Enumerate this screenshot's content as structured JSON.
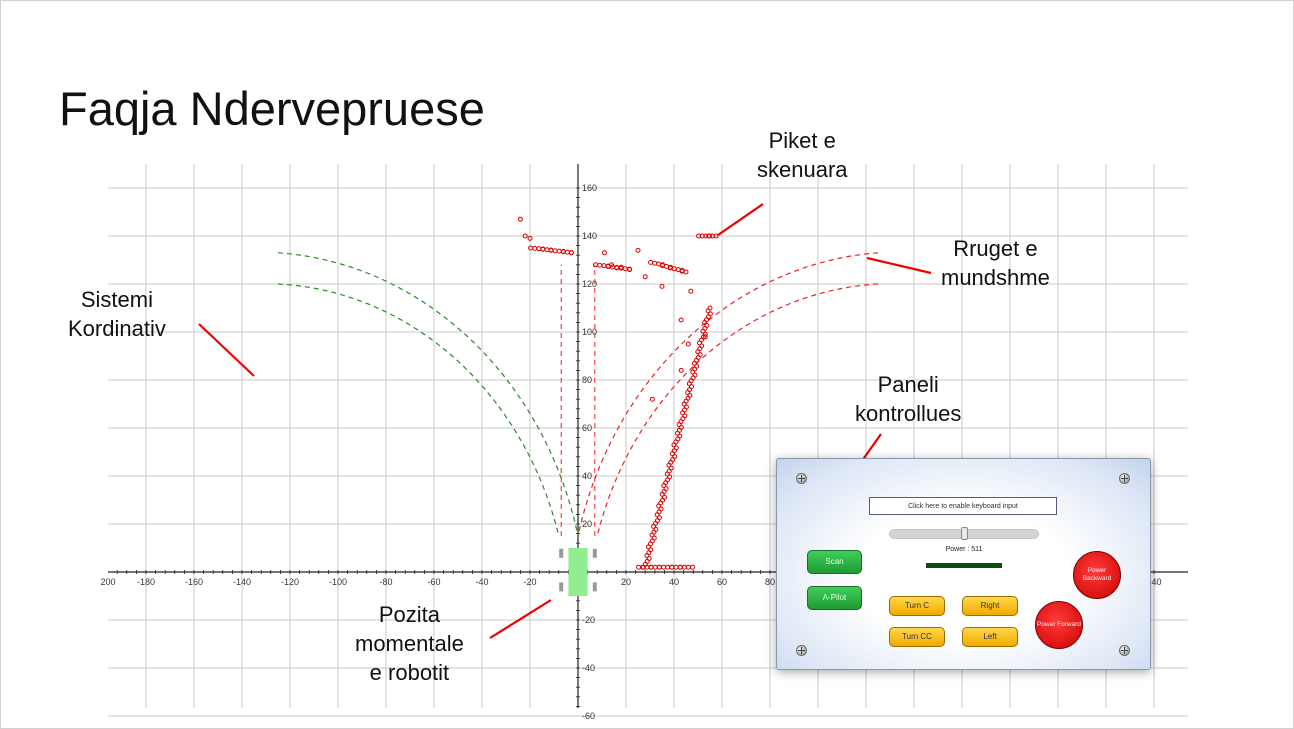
{
  "slide": {
    "title": "Faqja Ndervepruese",
    "annotations": {
      "coordinate_system": [
        "Sistemi",
        "Kordinativ"
      ],
      "scanned_points": [
        "Piket e",
        "skenuara"
      ],
      "possible_paths": [
        "Rruget e",
        "mundshme"
      ],
      "control_panel": [
        "Paneli",
        "kontrollues"
      ],
      "robot_position": [
        "Pozita",
        "momentale",
        "e robotit"
      ]
    }
  },
  "colors": {
    "grid": "#c8c8c8",
    "axis": "#222222",
    "scan_points": "#dd0000",
    "path_green": "#2a8a2a",
    "path_red": "#ee2222",
    "robot_body": "#90ee90",
    "pointer_line": "#ee0000"
  },
  "chart_data": {
    "type": "scatter",
    "xlim": [
      -200,
      240
    ],
    "ylim": [
      -60,
      160
    ],
    "x_ticks": [
      -200,
      -180,
      -160,
      -140,
      -120,
      -100,
      -80,
      -60,
      -40,
      -20,
      20,
      40,
      60,
      80,
      100,
      120,
      140,
      160,
      180,
      200,
      220,
      240
    ],
    "y_ticks": [
      160,
      140,
      120,
      100,
      80,
      60,
      40,
      20,
      -20,
      -40,
      -60
    ],
    "x_tick_labels_visible": [
      "200",
      "-180",
      "-160",
      "-140",
      "-120",
      "-100",
      "-80",
      "-60",
      "-40",
      "-20",
      "20",
      "40",
      "60",
      "80",
      "240"
    ],
    "y_tick_labels_visible": [
      "160",
      "140",
      "120",
      "100",
      "80",
      "60",
      "40",
      "20",
      "-20",
      "-40",
      "-60"
    ],
    "grid": true,
    "scan_segments": [
      {
        "x": [
          -19,
          -2
        ],
        "y": [
          135,
          133
        ]
      },
      {
        "x": [
          8,
          22
        ],
        "y": [
          128,
          126
        ]
      },
      {
        "x": [
          31,
          45
        ],
        "y": [
          129,
          125
        ]
      },
      {
        "x": [
          51,
          57
        ],
        "y": [
          140,
          140
        ]
      },
      {
        "x": [
          28,
          55
        ],
        "y": [
          2,
          110
        ]
      },
      {
        "x": [
          26,
          47
        ],
        "y": [
          2,
          2
        ]
      }
    ],
    "scan_points": [
      {
        "x": -24,
        "y": 147
      },
      {
        "x": -22,
        "y": 140
      },
      {
        "x": -20,
        "y": 139
      },
      {
        "x": 11,
        "y": 133
      },
      {
        "x": 14,
        "y": 128
      },
      {
        "x": 18,
        "y": 127
      },
      {
        "x": 25,
        "y": 134
      },
      {
        "x": 28,
        "y": 123
      },
      {
        "x": 35,
        "y": 119
      },
      {
        "x": 47,
        "y": 117
      },
      {
        "x": 43,
        "y": 105
      },
      {
        "x": 46,
        "y": 95
      },
      {
        "x": 43,
        "y": 84
      },
      {
        "x": 31,
        "y": 72
      },
      {
        "x": 53,
        "y": 98
      }
    ],
    "paths": [
      {
        "color": "green",
        "center": [
          -135,
          0
        ],
        "radii": [
          127,
          137
        ]
      },
      {
        "color": "red",
        "center": [
          125,
          0
        ],
        "radii": [
          128,
          138
        ]
      }
    ],
    "robot": {
      "x_range": [
        -4,
        4
      ],
      "y_range": [
        -10,
        10
      ]
    }
  },
  "control_panel": {
    "keyboard_input_text": "Click here to enable keyboard input",
    "power_label": "Power : 511",
    "power_value": 511,
    "slider_fraction": 0.5,
    "buttons": {
      "scan": "Scan",
      "autopilot": "A-Pilot",
      "turn_c": "Turn C",
      "right": "Right",
      "turn_cc": "Turn CC",
      "left": "Left",
      "power_backward": "Power Backward",
      "power_forward": "Power Forward"
    }
  }
}
